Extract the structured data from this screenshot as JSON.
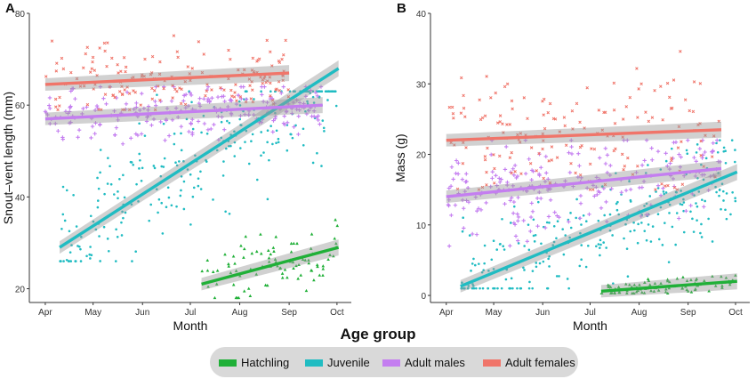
{
  "legend": {
    "title": "Age group",
    "items": [
      {
        "label": "Hatchling",
        "color": "#20b038"
      },
      {
        "label": "Juvenile",
        "color": "#20bcc2"
      },
      {
        "label": "Adult males",
        "color": "#c47ef0"
      },
      {
        "label": "Adult females",
        "color": "#f0756a"
      }
    ]
  },
  "chart_data": [
    {
      "panel": "A",
      "type": "scatter",
      "xlabel": "Month",
      "ylabel": "Snout–vent length (mm)",
      "x_ticks": [
        "Apr",
        "May",
        "Jun",
        "Jul",
        "Aug",
        "Sep",
        "Oct"
      ],
      "ylim": [
        17,
        80
      ],
      "y_ticks": [
        20,
        40,
        60,
        80
      ],
      "grid": false,
      "legend_position": "bottom",
      "series": [
        {
          "name": "Hatchling",
          "color": "#20b038",
          "marker": "triangle",
          "x_range": [
            "2021-07-08",
            "2021-10-02"
          ],
          "y_range": [
            18,
            35
          ],
          "trend": {
            "start": [
              "2021-07-08",
              21
            ],
            "end": [
              "2021-10-02",
              29
            ]
          }
        },
        {
          "name": "Juvenile",
          "color": "#20bcc2",
          "marker": "circle",
          "x_range": [
            "2021-04-10",
            "2021-10-01"
          ],
          "y_range": [
            26,
            63
          ],
          "trend": {
            "start": [
              "2021-04-10",
              29
            ],
            "end": [
              "2021-10-02",
              68
            ]
          }
        },
        {
          "name": "Adult males",
          "color": "#c47ef0",
          "marker": "plus",
          "x_range": [
            "2021-04-01",
            "2021-09-22"
          ],
          "y_range": [
            49,
            64
          ],
          "trend": {
            "start": [
              "2021-04-01",
              57
            ],
            "end": [
              "2021-09-22",
              60
            ]
          }
        },
        {
          "name": "Adult females",
          "color": "#f0756a",
          "marker": "cross",
          "x_range": [
            "2021-04-01",
            "2021-09-01"
          ],
          "y_range": [
            59,
            78
          ],
          "trend": {
            "start": [
              "2021-04-01",
              64.5
            ],
            "end": [
              "2021-09-01",
              67
            ]
          }
        }
      ]
    },
    {
      "panel": "B",
      "type": "scatter",
      "xlabel": "Month",
      "ylabel": "Mass (g)",
      "x_ticks": [
        "Apr",
        "May",
        "Jun",
        "Jul",
        "Aug",
        "Sep",
        "Oct"
      ],
      "ylim": [
        -1,
        40
      ],
      "y_ticks": [
        0,
        10,
        20,
        30,
        40
      ],
      "grid": false,
      "legend_position": "bottom",
      "series": [
        {
          "name": "Hatchling",
          "color": "#20b038",
          "marker": "triangle",
          "x_range": [
            "2021-07-08",
            "2021-10-02"
          ],
          "y_range": [
            0.3,
            3
          ],
          "trend": {
            "start": [
              "2021-07-08",
              0.6
            ],
            "end": [
              "2021-10-02",
              2
            ]
          }
        },
        {
          "name": "Juvenile",
          "color": "#20bcc2",
          "marker": "circle",
          "x_range": [
            "2021-04-10",
            "2021-10-01"
          ],
          "y_range": [
            1,
            22
          ],
          "trend": {
            "start": [
              "2021-04-10",
              1.3
            ],
            "end": [
              "2021-10-02",
              17.5
            ]
          }
        },
        {
          "name": "Adult males",
          "color": "#c47ef0",
          "marker": "plus",
          "x_range": [
            "2021-04-01",
            "2021-09-22"
          ],
          "y_range": [
            7,
            22
          ],
          "trend": {
            "start": [
              "2021-04-01",
              14
            ],
            "end": [
              "2021-09-22",
              18
            ]
          }
        },
        {
          "name": "Adult females",
          "color": "#f0756a",
          "marker": "cross",
          "x_range": [
            "2021-04-01",
            "2021-09-22"
          ],
          "y_range": [
            15,
            38
          ],
          "trend": {
            "start": [
              "2021-04-01",
              22
            ],
            "end": [
              "2021-09-22",
              23.5
            ]
          }
        }
      ]
    }
  ]
}
